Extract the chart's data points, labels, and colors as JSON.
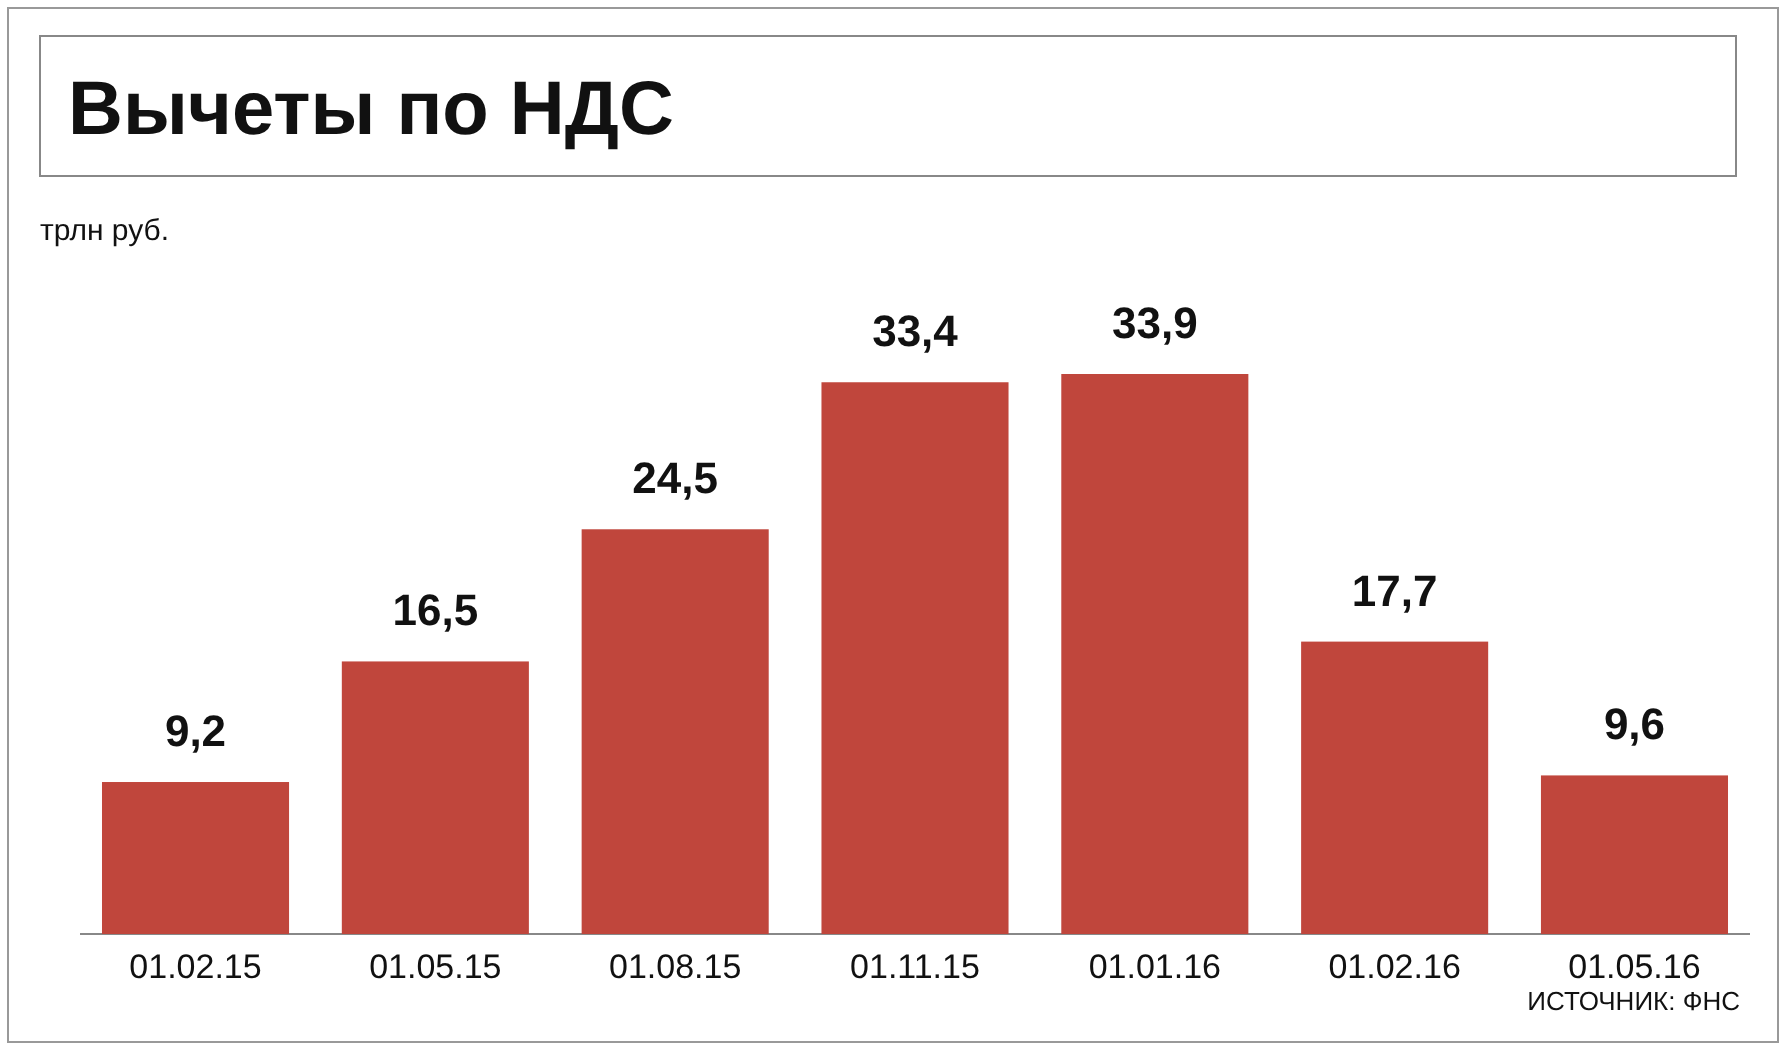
{
  "chart_data": {
    "type": "bar",
    "title": "Вычеты по НДС",
    "ylabel": "трлн руб.",
    "categories": [
      "01.02.15",
      "01.05.15",
      "01.08.15",
      "01.11.15",
      "01.01.16",
      "01.02.16",
      "01.05.16"
    ],
    "values": [
      9.2,
      16.5,
      24.5,
      33.4,
      33.9,
      17.7,
      9.6
    ],
    "value_labels": [
      "9,2",
      "16,5",
      "24,5",
      "33,4",
      "33,9",
      "17,7",
      "9,6"
    ],
    "color": "#c0463c",
    "annotations": [
      "ИСТОЧНИК: ФНС"
    ]
  }
}
